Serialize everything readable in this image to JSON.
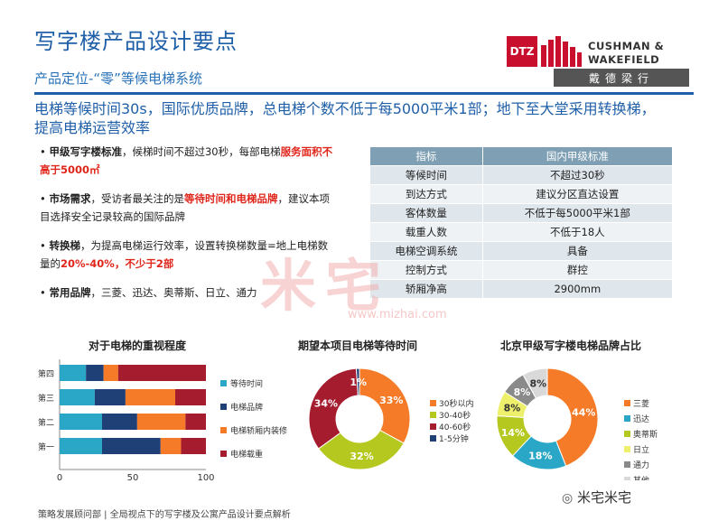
{
  "header": {
    "title": "写字楼产品设计要点",
    "subtitle": "产品定位-“零”等候电梯系统",
    "logo_dtz": "DTZ",
    "logo_cw_line1": "CUSHMAN &",
    "logo_cw_line2": "WAKEFIELD",
    "logo_cn": "戴德梁行"
  },
  "headline": "电梯等候时间30s，国际优质品牌，总电梯个数不低于每5000平米1部；地下至大堂采用转换梯，提高电梯运营效率",
  "bullets": [
    {
      "key": "甲级写字楼标准",
      "text1": "，候梯时间不超过30秒，每部电梯",
      "red": "服务面积不高于5000㎡",
      "text2": ""
    },
    {
      "key": "市场需求",
      "text1": "，受访者最关注的是",
      "red": "等待时间和电梯品牌",
      "text2": "，建议本项目选择安全记录较高的国际品牌"
    },
    {
      "key": "转换梯",
      "text1": "，为提高电梯运行效率，设置转换梯数量=地上电梯数量的",
      "red": "20%-40%，不少于2部",
      "text2": ""
    },
    {
      "key": "常用品牌",
      "text1": "，三菱、迅达、奥蒂斯、日立、通力",
      "red": "",
      "text2": ""
    }
  ],
  "spec_table": {
    "headers": [
      "指标",
      "国内甲级标准"
    ],
    "rows": [
      [
        "等候时间",
        "不超过30秒"
      ],
      [
        "到达方式",
        "建议分区直达设置"
      ],
      [
        "客体数量",
        "不低于每5000平米1部"
      ],
      [
        "载重人数",
        "不低于18人"
      ],
      [
        "电梯空调系统",
        "具备"
      ],
      [
        "控制方式",
        "群控"
      ],
      [
        "轿厢净高",
        "2900mm"
      ]
    ]
  },
  "watermark": {
    "text": "米宅",
    "url": "www.mizhai.com"
  },
  "colors": {
    "teal": "#2aa7c6",
    "navy": "#1f3f77",
    "orange": "#f57b28",
    "maroon": "#a51c2f",
    "olive": "#b5c81f",
    "yellow": "#eef06b",
    "grey": "#8a8a8a",
    "lightgrey": "#d9d9d9",
    "title_blue": "#1f5fa8"
  },
  "chart_data": [
    {
      "type": "bar",
      "orientation": "horizontal",
      "stacked": true,
      "title": "对于电梯的重视程度",
      "categories": [
        "第四",
        "第三",
        "第二",
        "第一"
      ],
      "xlim": [
        0,
        100
      ],
      "xticks": [
        "0",
        "50",
        "100"
      ],
      "series": [
        {
          "name": "等待时间",
          "color": "#2aa7c6",
          "values": [
            18,
            24,
            29,
            29
          ]
        },
        {
          "name": "电梯品牌",
          "color": "#1f3f77",
          "values": [
            12,
            21,
            24,
            40
          ]
        },
        {
          "name": "电梯轿厢内装修",
          "color": "#f57b28",
          "values": [
            10,
            34,
            33,
            14
          ]
        },
        {
          "name": "电梯载重",
          "color": "#a51c2f",
          "values": [
            60,
            21,
            14,
            17
          ]
        }
      ],
      "legend": "right"
    },
    {
      "type": "pie",
      "donut": true,
      "title": "期望本项目电梯等待时间",
      "labels": [
        "30秒以内",
        "30-40秒",
        "40-60秒",
        "1-5分钟"
      ],
      "values": [
        33,
        32,
        34,
        1
      ],
      "value_labels": [
        "33%",
        "32%",
        "34%",
        "1%"
      ],
      "colors": [
        "#f57b28",
        "#b5c81f",
        "#a51c2f",
        "#1f3f77"
      ],
      "legend": "right"
    },
    {
      "type": "pie",
      "donut": true,
      "title": "北京甲级写字楼电梯品牌占比",
      "labels": [
        "三菱",
        "迅达",
        "奥蒂斯",
        "日立",
        "通力",
        "其他"
      ],
      "values": [
        44,
        18,
        14,
        8,
        8,
        8
      ],
      "value_labels": [
        "44%",
        "18%",
        "14%",
        "8%",
        "8%",
        "8%"
      ],
      "colors": [
        "#f57b28",
        "#2aa7c6",
        "#b5c81f",
        "#eef06b",
        "#8a8a8a",
        "#d9d9d9"
      ],
      "legend": "right"
    }
  ],
  "footer": {
    "text": "策略发展顾问部 | 全局视点下的写字楼及公寓产品设计要点解析",
    "brand": "米宅米宅"
  }
}
